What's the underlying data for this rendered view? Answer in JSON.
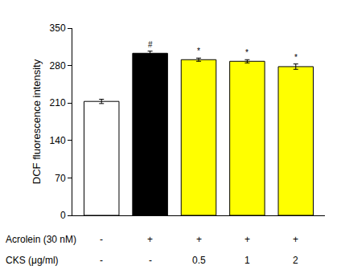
{
  "chart_data": {
    "type": "bar",
    "categories": [
      null,
      null,
      null,
      null,
      null
    ],
    "values": [
      213,
      303,
      291,
      288,
      278
    ],
    "errors": [
      4,
      4,
      3,
      3,
      5
    ],
    "colors": [
      "#ffffff",
      "#000000",
      "#ffff00",
      "#ffff00",
      "#ffff00"
    ],
    "significance": [
      null,
      "#",
      "*",
      "*",
      "*"
    ],
    "y_label": "DCF fluorescence intensity",
    "ylim": [
      0,
      350
    ],
    "yticks": [
      0,
      70,
      140,
      210,
      280,
      350
    ],
    "grid": false,
    "condition_rows": [
      {
        "label": "Acrolein (30 nM)",
        "values": [
          "-",
          "+",
          "+",
          "+",
          "+"
        ]
      },
      {
        "label": "CKS (μg/ml)",
        "values": [
          "-",
          "-",
          "0.5",
          "1",
          "2"
        ]
      }
    ]
  }
}
